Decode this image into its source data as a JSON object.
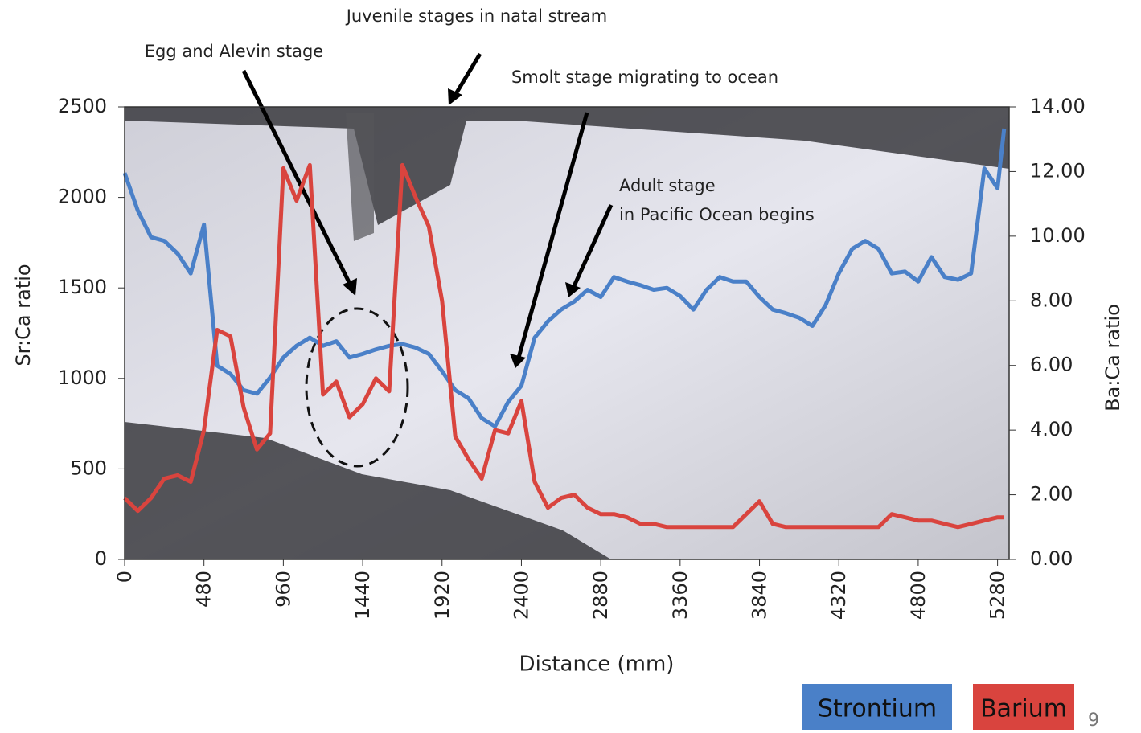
{
  "chart_data": {
    "type": "line",
    "x": [
      0,
      80,
      160,
      240,
      320,
      400,
      480,
      560,
      640,
      720,
      800,
      880,
      960,
      1040,
      1120,
      1200,
      1280,
      1360,
      1440,
      1520,
      1600,
      1680,
      1760,
      1840,
      1920,
      2000,
      2080,
      2160,
      2240,
      2320,
      2400,
      2480,
      2560,
      2640,
      2720,
      2800,
      2880,
      2960,
      3040,
      3120,
      3200,
      3280,
      3360,
      3440,
      3520,
      3600,
      3680,
      3760,
      3840,
      3920,
      4000,
      4080,
      4160,
      4240,
      4320,
      4400,
      4480,
      4560,
      4640,
      4720,
      4800,
      4880,
      4960,
      5040,
      5120,
      5200,
      5280,
      5320
    ],
    "series": [
      {
        "name": "Strontium",
        "color": "#4a80c8",
        "values": [
          2135,
          1927,
          1780,
          1760,
          1690,
          1580,
          1850,
          1070,
          1025,
          935,
          915,
          1005,
          1115,
          1180,
          1225,
          1180,
          1205,
          1115,
          1135,
          1160,
          1180,
          1190,
          1170,
          1135,
          1040,
          935,
          890,
          780,
          735,
          870,
          960,
          1225,
          1315,
          1380,
          1425,
          1490,
          1450,
          1560,
          1535,
          1515,
          1490,
          1500,
          1455,
          1380,
          1490,
          1560,
          1535,
          1535,
          1450,
          1380,
          1360,
          1335,
          1290,
          1405,
          1580,
          1715,
          1760,
          1715,
          1580,
          1590,
          1535,
          1670,
          1560,
          1545,
          1580,
          2160,
          2050,
          2380
        ]
      },
      {
        "name": "Barium",
        "color": "#d9443e",
        "axis": "y2",
        "values": [
          1.9,
          1.5,
          1.9,
          2.5,
          2.6,
          2.4,
          4.0,
          7.1,
          6.9,
          4.7,
          3.4,
          3.9,
          12.1,
          11.1,
          12.2,
          5.1,
          5.5,
          4.4,
          4.8,
          5.6,
          5.2,
          12.2,
          11.2,
          10.3,
          8.0,
          3.8,
          3.1,
          2.5,
          4.0,
          3.9,
          4.9,
          2.4,
          1.6,
          1.9,
          2.0,
          1.6,
          1.4,
          1.4,
          1.3,
          1.1,
          1.1,
          1.0,
          1.0,
          1.0,
          1.0,
          1.0,
          1.0,
          1.4,
          1.8,
          1.1,
          1.0,
          1.0,
          1.0,
          1.0,
          1.0,
          1.0,
          1.0,
          1.0,
          1.4,
          1.3,
          1.2,
          1.2,
          1.1,
          1.0,
          1.1,
          1.2,
          1.3,
          1.3
        ]
      }
    ],
    "xlim": [
      0,
      5350
    ],
    "xticks": [
      0,
      480,
      960,
      1440,
      1920,
      2400,
      2880,
      3360,
      3840,
      4320,
      4800,
      5280
    ],
    "ylim": [
      0,
      2500
    ],
    "yticks": [
      0,
      500,
      1000,
      1500,
      2000,
      2500
    ],
    "y2lim": [
      0,
      14
    ],
    "y2ticks": [
      {
        "value": 0,
        "label": "0.00"
      },
      {
        "value": 2,
        "label": "2.00"
      },
      {
        "value": 4,
        "label": "4.00"
      },
      {
        "value": 6,
        "label": "6.00"
      },
      {
        "value": 8,
        "label": "8.00"
      },
      {
        "value": 10,
        "label": "10.00"
      },
      {
        "value": 12,
        "label": "12.00"
      },
      {
        "value": 14,
        "label": "14.00"
      }
    ],
    "xlabel": "Distance (mm)",
    "ylabel": "Sr:Ca ratio",
    "y2label": "Ba:Ca ratio",
    "annotations": [
      "Juvenile stages in natal stream",
      "Egg and Alevin stage",
      "Smolt stage migrating to ocean",
      "Adult stage",
      "in Pacific Ocean begins"
    ],
    "page_number": "9"
  }
}
